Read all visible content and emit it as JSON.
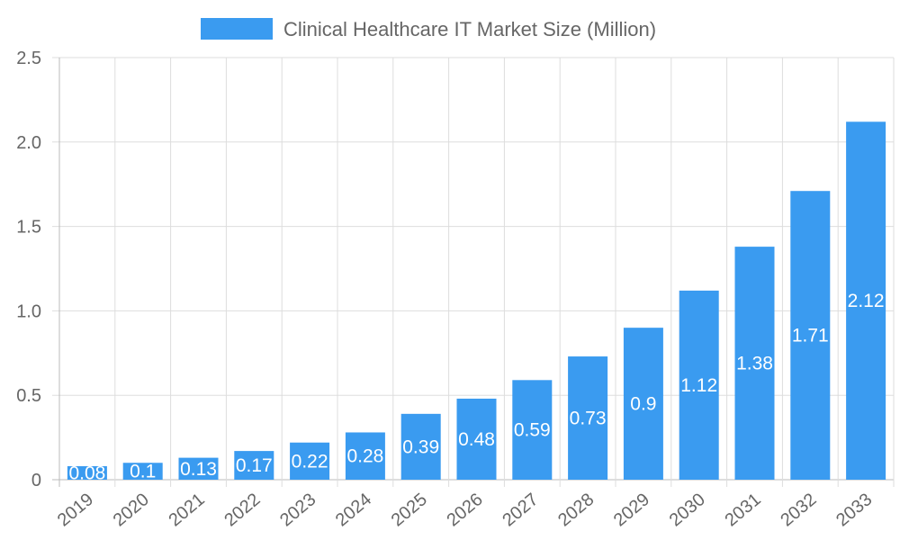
{
  "chart_data": {
    "type": "bar",
    "title": "",
    "xlabel": "",
    "ylabel": "",
    "categories": [
      "2019",
      "2020",
      "2021",
      "2022",
      "2023",
      "2024",
      "2025",
      "2026",
      "2027",
      "2028",
      "2029",
      "2030",
      "2031",
      "2032",
      "2033"
    ],
    "series": [
      {
        "name": "Clinical Healthcare IT Market Size (Million)",
        "values": [
          0.08,
          0.1,
          0.13,
          0.17,
          0.22,
          0.28,
          0.39,
          0.48,
          0.59,
          0.73,
          0.9,
          1.12,
          1.38,
          1.71,
          2.12
        ],
        "data_labels": [
          "0.08",
          "0.1",
          "0.13",
          "0.17",
          "0.22",
          "0.28",
          "0.39",
          "0.48",
          "0.59",
          "0.73",
          "0.9",
          "1.12",
          "1.38",
          "1.71",
          "2.12"
        ]
      }
    ],
    "ylim": [
      0,
      2.5
    ],
    "yticks": [
      "0",
      "0.5",
      "1.0",
      "1.5",
      "2.0",
      "2.5"
    ],
    "yticks_values": [
      0,
      0.5,
      1.0,
      1.5,
      2.0,
      2.5
    ],
    "grid": true,
    "legend": "top",
    "colors": {
      "bar": "#3a9bf0",
      "grid": "#dddddd",
      "text": "#666666"
    }
  }
}
